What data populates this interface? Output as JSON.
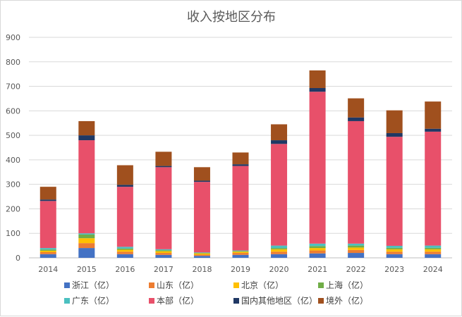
{
  "chart_data": {
    "type": "bar",
    "stacked": true,
    "title": "收入按地区分布",
    "xlabel": "",
    "ylabel": "",
    "ylim": [
      0,
      900
    ],
    "yticks": [
      0,
      100,
      200,
      300,
      400,
      500,
      600,
      700,
      800,
      900
    ],
    "grid": true,
    "legend_position": "bottom",
    "categories": [
      "2014",
      "2015",
      "2016",
      "2017",
      "2018",
      "2019",
      "2020",
      "2021",
      "2022",
      "2023",
      "2024"
    ],
    "series": [
      {
        "name": "浙江（亿）",
        "color": "#4472C4",
        "values": [
          15,
          40,
          15,
          12,
          8,
          12,
          15,
          18,
          20,
          15,
          15
        ]
      },
      {
        "name": "山东（亿）",
        "color": "#ED7D31",
        "values": [
          8,
          20,
          10,
          8,
          5,
          8,
          10,
          12,
          12,
          10,
          10
        ]
      },
      {
        "name": "北京（亿）",
        "color": "#FFC000",
        "values": [
          6,
          20,
          8,
          7,
          5,
          5,
          10,
          10,
          10,
          10,
          10
        ]
      },
      {
        "name": "上海（亿）",
        "color": "#70AD47",
        "values": [
          5,
          15,
          5,
          4,
          2,
          3,
          5,
          8,
          8,
          6,
          6
        ]
      },
      {
        "name": "广东（亿）",
        "color": "#4BC0C0",
        "values": [
          6,
          5,
          7,
          4,
          2,
          2,
          10,
          10,
          8,
          8,
          9
        ]
      },
      {
        "name": "本部（亿）",
        "color": "#E8506A",
        "values": [
          192,
          380,
          245,
          335,
          288,
          345,
          415,
          620,
          500,
          445,
          465
        ]
      },
      {
        "name": "国内其他地区（亿）",
        "color": "#203864",
        "values": [
          6,
          20,
          8,
          5,
          5,
          7,
          15,
          15,
          15,
          15,
          12
        ]
      },
      {
        "name": "境外（亿）",
        "color": "#A0501E",
        "values": [
          52,
          58,
          80,
          58,
          55,
          48,
          65,
          72,
          78,
          93,
          111
        ]
      }
    ]
  }
}
